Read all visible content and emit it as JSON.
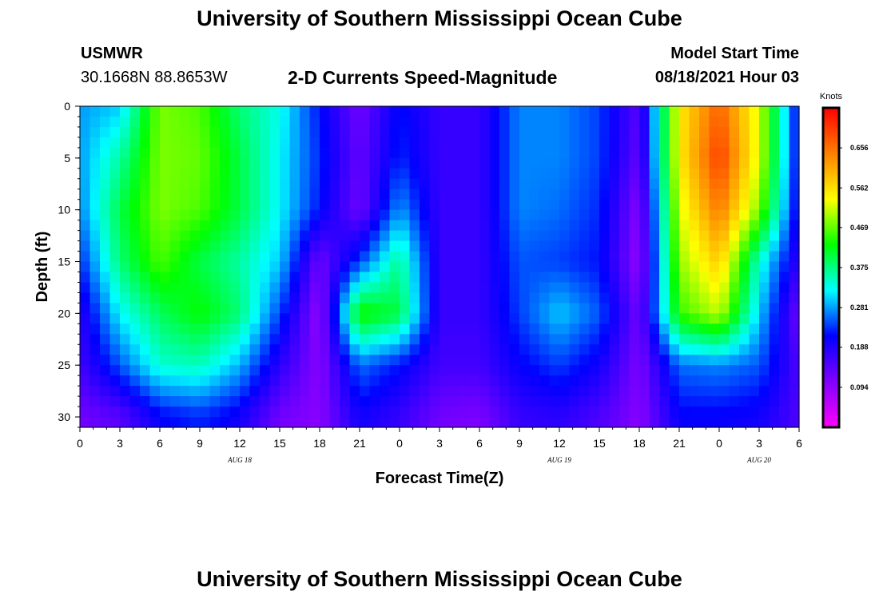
{
  "page": {
    "title_top": "University of Southern Mississippi Ocean Cube",
    "title_bottom": "University of Southern Mississippi Ocean Cube",
    "station": "USMWR",
    "coordinates": "30.1668N  88.8653W",
    "plot_title": "2-D Currents Speed-Magnitude",
    "model_start_label": "Model Start Time",
    "model_start_value": "08/18/2021 Hour 03"
  },
  "chart_data": {
    "type": "heatmap",
    "title": "2-D Currents Speed-Magnitude",
    "xlabel": "Forecast Time(Z)",
    "ylabel": "Depth (ft)",
    "x_tick_labels": [
      "0",
      "3",
      "6",
      "9",
      "12",
      "15",
      "18",
      "21",
      "0",
      "3",
      "6",
      "9",
      "12",
      "15",
      "18",
      "21",
      "0",
      "3",
      "6"
    ],
    "date_labels": [
      {
        "text": "AUG 18",
        "at_hour": 12
      },
      {
        "text": "AUG 19",
        "at_hour": 36
      },
      {
        "text": "AUG 20",
        "at_hour": 51
      }
    ],
    "xlim_hours": [
      0,
      54
    ],
    "y_ticks": [
      0,
      5,
      10,
      15,
      20,
      25,
      30
    ],
    "ylim_ft": [
      0,
      31
    ],
    "y_inverted": true,
    "colorbar": {
      "unit": "Knots",
      "ticks": [
        "0.094",
        "0.188",
        "0.281",
        "0.375",
        "0.469",
        "0.562",
        "0.656"
      ],
      "min": 0,
      "max": 0.75,
      "colors": [
        "#ff00ff",
        "#8000ff",
        "#0000ff",
        "#00ffff",
        "#00ff00",
        "#ffff00",
        "#ff8000",
        "#ff0000"
      ]
    },
    "grid": {
      "x_hours": [
        0,
        3,
        6,
        9,
        12,
        15,
        18,
        21,
        24,
        27,
        30,
        33,
        36,
        39,
        42,
        45,
        48,
        51,
        54
      ],
      "y_depths_ft": [
        0,
        5,
        10,
        15,
        20,
        25,
        30
      ],
      "speed_knots": [
        [
          0.28,
          0.3,
          0.48,
          0.46,
          0.38,
          0.33,
          0.22,
          0.12,
          0.22,
          0.17,
          0.17,
          0.27,
          0.27,
          0.24,
          0.14,
          0.55,
          0.67,
          0.52,
          0.2
        ],
        [
          0.28,
          0.36,
          0.48,
          0.47,
          0.4,
          0.32,
          0.23,
          0.13,
          0.23,
          0.17,
          0.17,
          0.27,
          0.27,
          0.24,
          0.13,
          0.55,
          0.7,
          0.52,
          0.2
        ],
        [
          0.27,
          0.4,
          0.48,
          0.46,
          0.4,
          0.32,
          0.22,
          0.12,
          0.28,
          0.17,
          0.17,
          0.27,
          0.26,
          0.23,
          0.1,
          0.52,
          0.65,
          0.48,
          0.19
        ],
        [
          0.23,
          0.38,
          0.46,
          0.4,
          0.36,
          0.3,
          0.12,
          0.24,
          0.37,
          0.17,
          0.17,
          0.25,
          0.24,
          0.22,
          0.09,
          0.49,
          0.58,
          0.34,
          0.17
        ],
        [
          0.18,
          0.32,
          0.39,
          0.43,
          0.38,
          0.24,
          0.09,
          0.44,
          0.4,
          0.17,
          0.17,
          0.24,
          0.3,
          0.25,
          0.12,
          0.45,
          0.51,
          0.3,
          0.12
        ],
        [
          0.16,
          0.25,
          0.34,
          0.35,
          0.29,
          0.18,
          0.1,
          0.26,
          0.22,
          0.16,
          0.16,
          0.21,
          0.24,
          0.2,
          0.11,
          0.26,
          0.27,
          0.25,
          0.15
        ],
        [
          0.12,
          0.14,
          0.21,
          0.23,
          0.2,
          0.12,
          0.1,
          0.2,
          0.17,
          0.12,
          0.11,
          0.17,
          0.18,
          0.15,
          0.1,
          0.21,
          0.21,
          0.2,
          0.15
        ]
      ]
    }
  }
}
